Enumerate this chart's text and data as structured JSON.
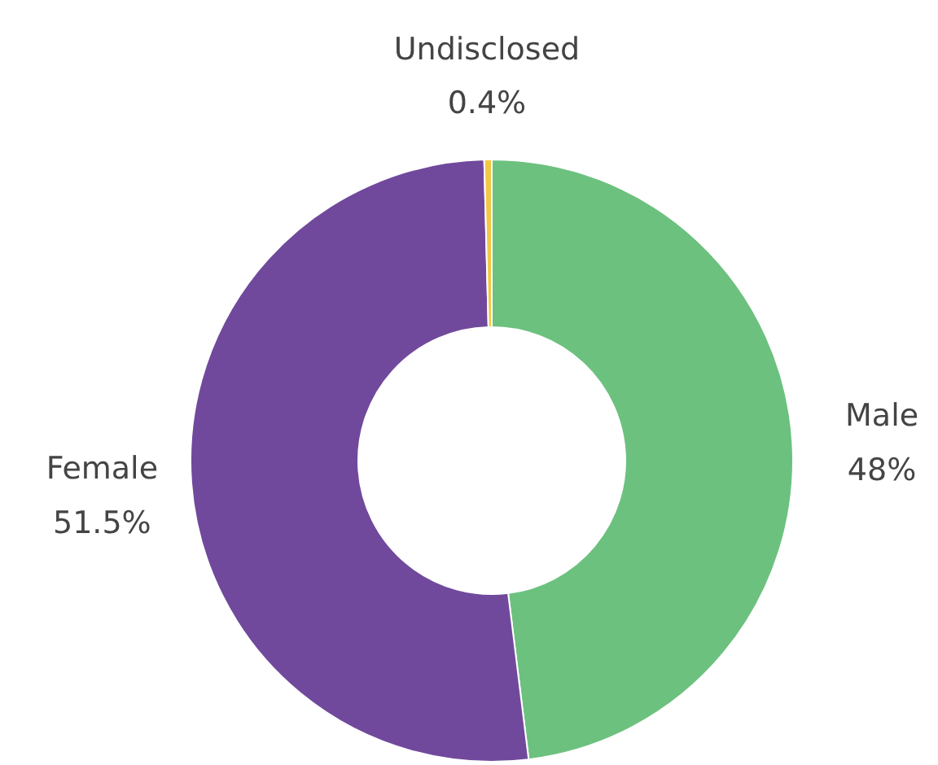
{
  "chart_data": {
    "type": "donut",
    "categories": [
      "Male",
      "Female",
      "Undisclosed"
    ],
    "values": [
      48,
      51.5,
      0.4
    ],
    "value_labels": [
      "48%",
      "51.5%",
      "0.4%"
    ],
    "colors": [
      "#6cc17f",
      "#70499c",
      "#f2c744"
    ],
    "legend": false
  }
}
